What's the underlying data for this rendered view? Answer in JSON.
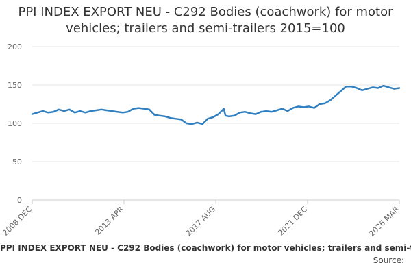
{
  "chart_data": {
    "type": "line",
    "title": "PPI INDEX EXPORT NEU - C292 Bodies (coachwork) for motor vehicles; trailers and semi-trailers 2015=100",
    "xlabel": "",
    "ylabel": "",
    "ylim": [
      0,
      200
    ],
    "yticks": [
      0,
      50,
      100,
      150,
      200
    ],
    "x_tick_labels": [
      "2008 DEC",
      "2013 APR",
      "2017 AUG",
      "2021 DEC",
      "2026 MAR"
    ],
    "x_range": [
      "2008-12",
      "2026-03"
    ],
    "grid": "horizontal",
    "series": [
      {
        "name": "PPI INDEX EXPORT NEU - C292 Bodies (coachwork) for motor vehicles; trailers and semi-trailers 2015=100",
        "color": "#2f7fc1",
        "points": [
          [
            "2008-12",
            112
          ],
          [
            "2009-03",
            114
          ],
          [
            "2009-06",
            116
          ],
          [
            "2009-09",
            114
          ],
          [
            "2009-12",
            115
          ],
          [
            "2010-03",
            118
          ],
          [
            "2010-06",
            116
          ],
          [
            "2010-09",
            118
          ],
          [
            "2010-12",
            114
          ],
          [
            "2011-03",
            116
          ],
          [
            "2011-06",
            114
          ],
          [
            "2011-09",
            116
          ],
          [
            "2011-12",
            117
          ],
          [
            "2012-03",
            118
          ],
          [
            "2012-06",
            117
          ],
          [
            "2012-09",
            116
          ],
          [
            "2012-12",
            115
          ],
          [
            "2013-03",
            114
          ],
          [
            "2013-06",
            115
          ],
          [
            "2013-09",
            119
          ],
          [
            "2013-12",
            120
          ],
          [
            "2014-03",
            119
          ],
          [
            "2014-06",
            118
          ],
          [
            "2014-09",
            111
          ],
          [
            "2014-12",
            110
          ],
          [
            "2015-03",
            109
          ],
          [
            "2015-06",
            107
          ],
          [
            "2015-09",
            106
          ],
          [
            "2015-12",
            105
          ],
          [
            "2016-03",
            100
          ],
          [
            "2016-06",
            99
          ],
          [
            "2016-09",
            101
          ],
          [
            "2016-12",
            99
          ],
          [
            "2017-03",
            106
          ],
          [
            "2017-06",
            108
          ],
          [
            "2017-09",
            112
          ],
          [
            "2017-12",
            119
          ],
          [
            "2018-01",
            110
          ],
          [
            "2018-03",
            109
          ],
          [
            "2018-06",
            110
          ],
          [
            "2018-09",
            114
          ],
          [
            "2018-12",
            115
          ],
          [
            "2019-03",
            113
          ],
          [
            "2019-06",
            112
          ],
          [
            "2019-09",
            115
          ],
          [
            "2019-12",
            116
          ],
          [
            "2020-03",
            115
          ],
          [
            "2020-06",
            117
          ],
          [
            "2020-09",
            119
          ],
          [
            "2020-12",
            116
          ],
          [
            "2021-03",
            120
          ],
          [
            "2021-06",
            122
          ],
          [
            "2021-09",
            121
          ],
          [
            "2021-12",
            122
          ],
          [
            "2022-03",
            120
          ],
          [
            "2022-06",
            125
          ],
          [
            "2022-09",
            126
          ],
          [
            "2022-12",
            130
          ],
          [
            "2023-03",
            136
          ],
          [
            "2023-06",
            142
          ],
          [
            "2023-09",
            148
          ],
          [
            "2023-12",
            148
          ],
          [
            "2024-03",
            146
          ],
          [
            "2024-06",
            143
          ],
          [
            "2024-09",
            145
          ],
          [
            "2024-12",
            147
          ],
          [
            "2025-03",
            146
          ],
          [
            "2025-06",
            149
          ],
          [
            "2025-09",
            147
          ],
          [
            "2025-12",
            145
          ],
          [
            "2026-03",
            146
          ]
        ]
      }
    ],
    "source_label": "Source:"
  }
}
